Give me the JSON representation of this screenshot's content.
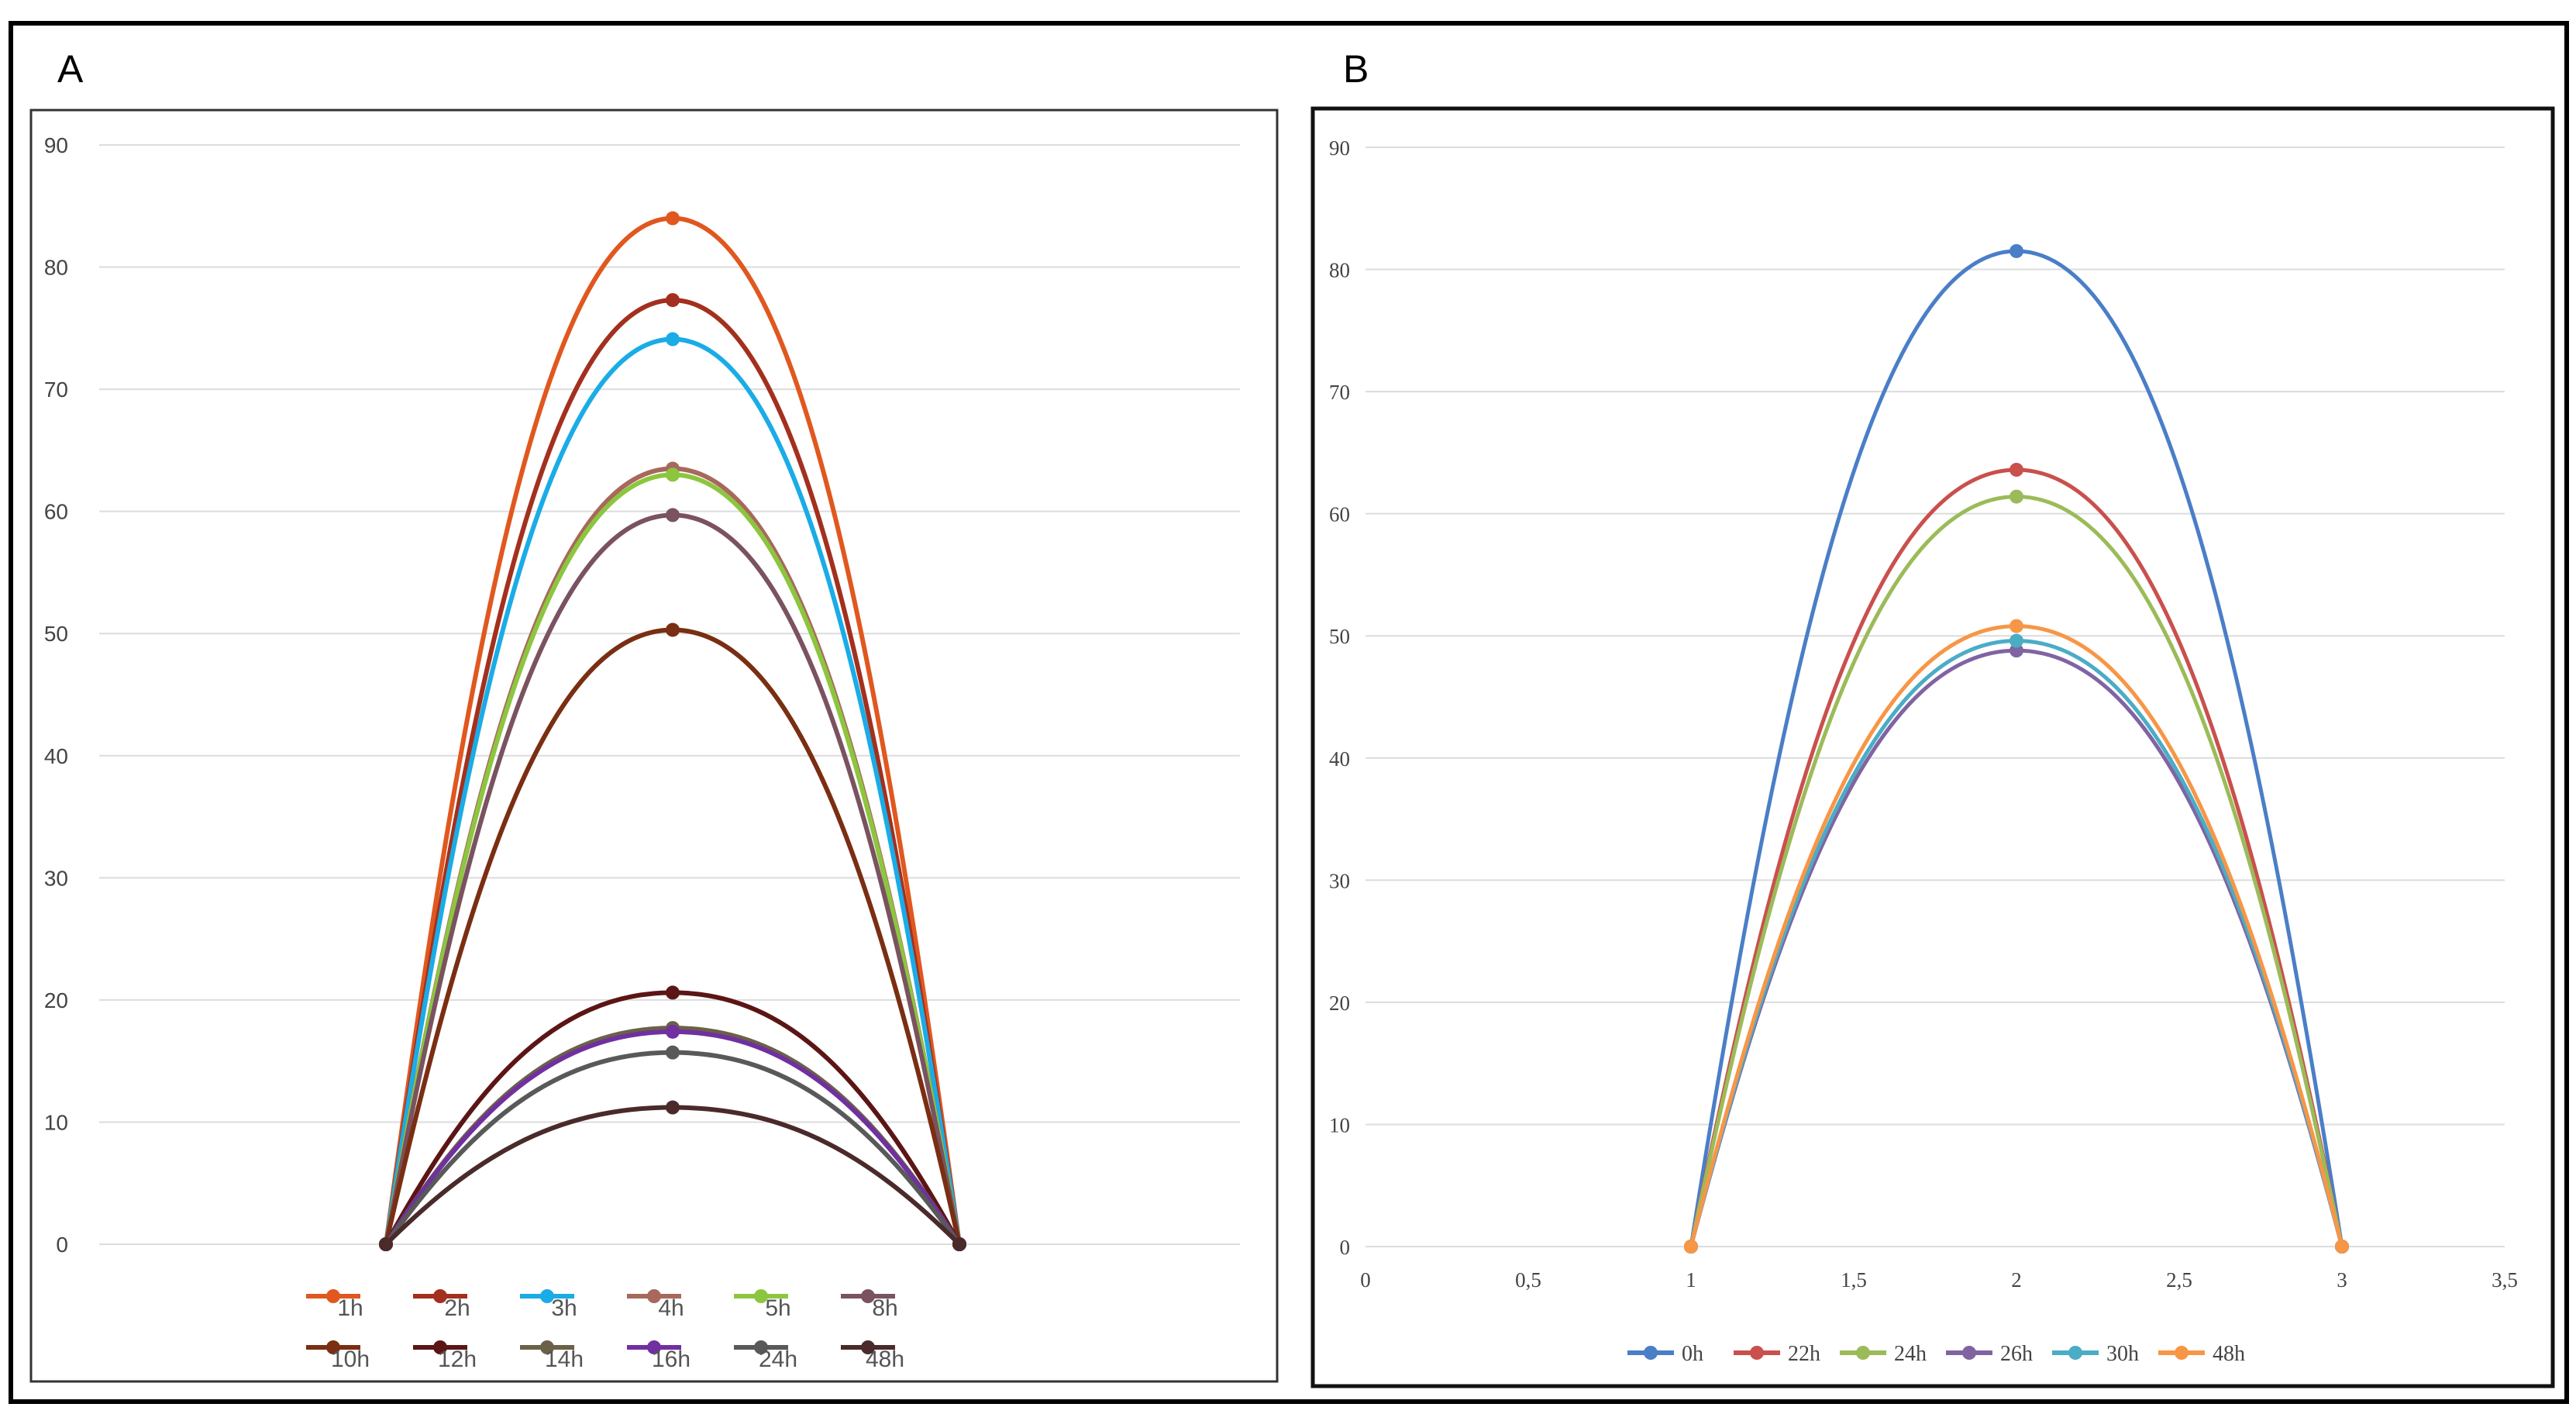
{
  "panels": [
    {
      "label": "A",
      "chart_data": {
        "type": "line",
        "title": "",
        "xlabel": "",
        "ylabel": "",
        "x": [
          1,
          2,
          3
        ],
        "xlim": [
          0,
          4
        ],
        "ylim": [
          0,
          90
        ],
        "yticks": [
          0,
          10,
          20,
          30,
          40,
          50,
          60,
          70,
          80,
          90
        ],
        "xticks": [],
        "grid": true,
        "smooth": true,
        "legend_position": "bottom",
        "series": [
          {
            "name": "1h",
            "color": "#E0581F",
            "values": [
              0,
              84.0,
              0
            ]
          },
          {
            "name": "2h",
            "color": "#A3301E",
            "values": [
              0,
              77.3,
              0
            ]
          },
          {
            "name": "3h",
            "color": "#1AACE6",
            "values": [
              0,
              74.1,
              0
            ]
          },
          {
            "name": "4h",
            "color": "#A8685C",
            "values": [
              0,
              63.5,
              0
            ]
          },
          {
            "name": "5h",
            "color": "#8CC63F",
            "values": [
              0,
              63.0,
              0
            ]
          },
          {
            "name": "8h",
            "color": "#7A5260",
            "values": [
              0,
              59.7,
              0
            ]
          },
          {
            "name": "10h",
            "color": "#7A2E12",
            "values": [
              0,
              50.3,
              0
            ]
          },
          {
            "name": "12h",
            "color": "#5C1515",
            "values": [
              0,
              20.6,
              0
            ]
          },
          {
            "name": "14h",
            "color": "#6B6048",
            "values": [
              0,
              17.7,
              0
            ]
          },
          {
            "name": "16h",
            "color": "#7030A0",
            "values": [
              0,
              17.4,
              0
            ]
          },
          {
            "name": "24h",
            "color": "#595959",
            "values": [
              0,
              15.7,
              0
            ]
          },
          {
            "name": "48h",
            "color": "#4A2A2A",
            "values": [
              0,
              11.2,
              0
            ]
          }
        ]
      }
    },
    {
      "label": "B",
      "chart_data": {
        "type": "line",
        "title": "",
        "xlabel": "",
        "ylabel": "",
        "x": [
          1,
          2,
          3
        ],
        "xlim": [
          0,
          3.5
        ],
        "ylim": [
          0,
          90
        ],
        "yticks": [
          0,
          10,
          20,
          30,
          40,
          50,
          60,
          70,
          80,
          90
        ],
        "xticks": [
          0,
          0.5,
          1,
          1.5,
          2,
          2.5,
          3,
          3.5
        ],
        "xtick_labels": [
          "0",
          "0,5",
          "1",
          "1,5",
          "2",
          "2,5",
          "3",
          "3,5"
        ],
        "grid": true,
        "smooth": true,
        "legend_position": "bottom",
        "series": [
          {
            "name": "0h",
            "color": "#4A7EC7",
            "values": [
              0,
              81.5,
              0
            ]
          },
          {
            "name": "22h",
            "color": "#C9504D",
            "values": [
              0,
              63.6,
              0
            ]
          },
          {
            "name": "24h",
            "color": "#9BBB59",
            "values": [
              0,
              61.4,
              0
            ]
          },
          {
            "name": "26h",
            "color": "#8064A2",
            "values": [
              0,
              48.8,
              0
            ]
          },
          {
            "name": "30h",
            "color": "#4BACC6",
            "values": [
              0,
              49.6,
              0
            ]
          },
          {
            "name": "48h",
            "color": "#F79646",
            "values": [
              0,
              50.8,
              0
            ]
          }
        ]
      }
    }
  ]
}
